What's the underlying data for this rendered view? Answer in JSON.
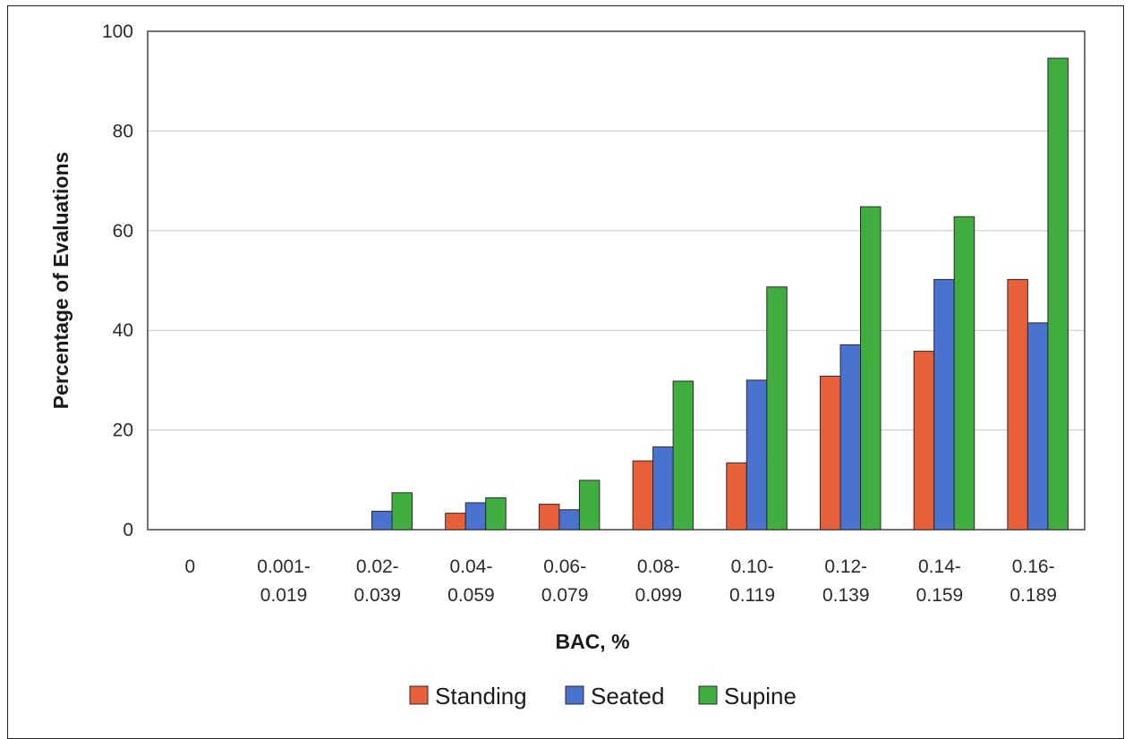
{
  "chart_data": {
    "type": "bar",
    "title": "",
    "xlabel": "BAC, %",
    "ylabel": "Percentage of Evaluations",
    "ylim": [
      0,
      100
    ],
    "yticks": [
      0,
      20,
      40,
      60,
      80,
      100
    ],
    "grid": true,
    "legend_position": "bottom",
    "categories": [
      [
        "0"
      ],
      [
        "0.001-",
        "0.019"
      ],
      [
        "0.02-",
        "0.039"
      ],
      [
        "0.04-",
        "0.059"
      ],
      [
        "0.06-",
        "0.079"
      ],
      [
        "0.08-",
        "0.099"
      ],
      [
        "0.10-",
        "0.119"
      ],
      [
        "0.12-",
        "0.139"
      ],
      [
        "0.14-",
        "0.159"
      ],
      [
        "0.16-",
        "0.189"
      ]
    ],
    "series": [
      {
        "name": "Standing",
        "color": "#e8603a",
        "values": [
          0,
          0,
          0,
          3.3,
          5.1,
          13.8,
          13.4,
          30.8,
          35.8,
          50.2
        ]
      },
      {
        "name": "Seated",
        "color": "#4a73cf",
        "values": [
          0,
          0,
          3.7,
          5.4,
          4.0,
          16.6,
          30.0,
          37.1,
          50.2,
          41.5
        ]
      },
      {
        "name": "Supine",
        "color": "#3fae3f",
        "values": [
          0,
          0,
          7.4,
          6.4,
          9.9,
          29.8,
          48.7,
          64.8,
          62.8,
          94.6
        ]
      }
    ]
  }
}
